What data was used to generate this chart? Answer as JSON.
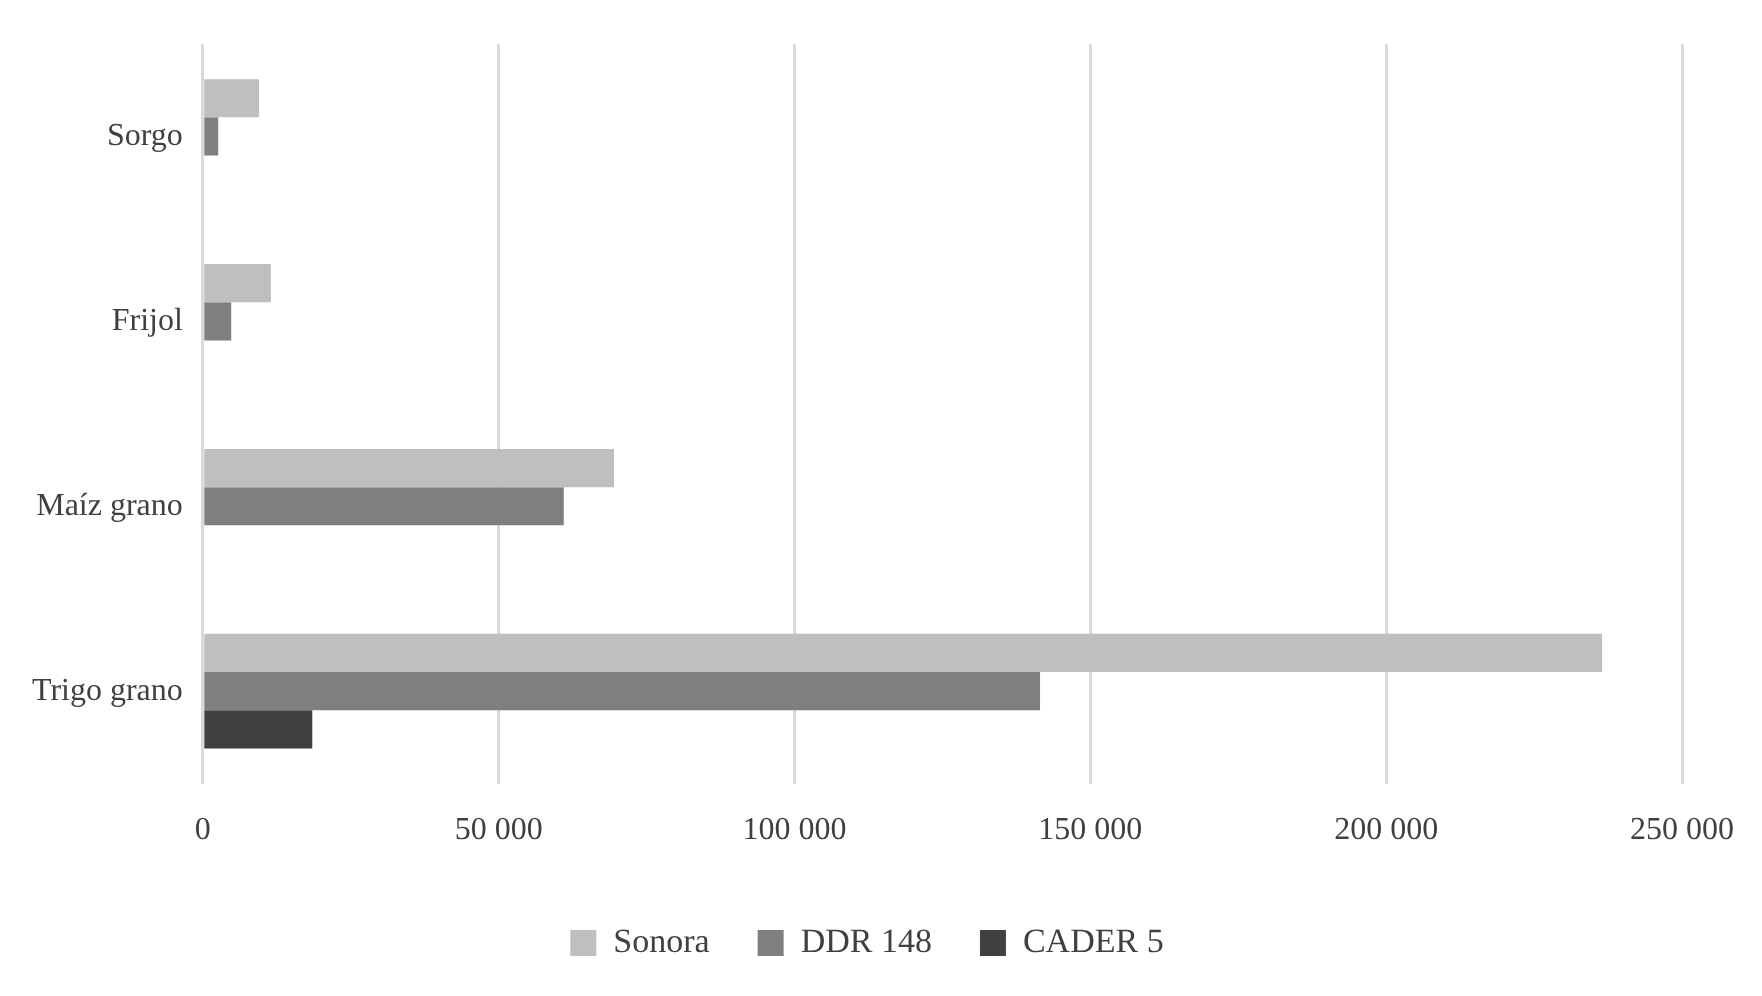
{
  "chart_data": {
    "type": "bar",
    "orientation": "horizontal",
    "categories": [
      "Sorgo",
      "Frijol",
      "Maíz grano",
      "Trigo grano"
    ],
    "series": [
      {
        "name": "Sonora",
        "color": "#bfbfbf",
        "values": [
          9500,
          11500,
          69500,
          236500
        ]
      },
      {
        "name": "DDR 148",
        "color": "#7f7f7f",
        "values": [
          2600,
          4800,
          61000,
          141500
        ]
      },
      {
        "name": "CADER 5",
        "color": "#404040",
        "values": [
          0,
          0,
          0,
          18500
        ]
      }
    ],
    "xlim": [
      0,
      250000
    ],
    "xticks": [
      {
        "value": 0,
        "label": "0"
      },
      {
        "value": 50000,
        "label": "50 000"
      },
      {
        "value": 100000,
        "label": "100 000"
      },
      {
        "value": 150000,
        "label": "150 000"
      },
      {
        "value": 200000,
        "label": "200 000"
      },
      {
        "value": 250000,
        "label": "250 000"
      }
    ],
    "grid": "x",
    "legend": "bottom"
  }
}
